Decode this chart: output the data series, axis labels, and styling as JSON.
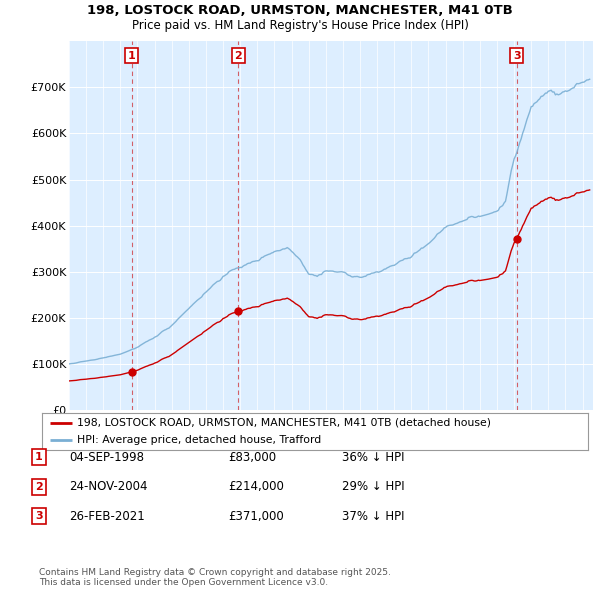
{
  "title1": "198, LOSTOCK ROAD, URMSTON, MANCHESTER, M41 0TB",
  "title2": "Price paid vs. HM Land Registry's House Price Index (HPI)",
  "legend_line1": "198, LOSTOCK ROAD, URMSTON, MANCHESTER, M41 0TB (detached house)",
  "legend_line2": "HPI: Average price, detached house, Trafford",
  "sale_color": "#cc0000",
  "hpi_color": "#7aafd4",
  "vline_color": "#cc0000",
  "purchases": [
    {
      "price": 83000,
      "label": "1",
      "year": 1998.67
    },
    {
      "price": 214000,
      "label": "2",
      "year": 2004.9
    },
    {
      "price": 371000,
      "label": "3",
      "year": 2021.15
    }
  ],
  "table_rows": [
    {
      "num": "1",
      "date": "04-SEP-1998",
      "price": "£83,000",
      "note": "36% ↓ HPI"
    },
    {
      "num": "2",
      "date": "24-NOV-2004",
      "price": "£214,000",
      "note": "29% ↓ HPI"
    },
    {
      "num": "3",
      "date": "26-FEB-2021",
      "price": "£371,000",
      "note": "37% ↓ HPI"
    }
  ],
  "footer": "Contains HM Land Registry data © Crown copyright and database right 2025.\nThis data is licensed under the Open Government Licence v3.0.",
  "ylim": [
    0,
    800000
  ],
  "yticks": [
    0,
    100000,
    200000,
    300000,
    400000,
    500000,
    600000,
    700000
  ],
  "ytick_labels": [
    "£0",
    "£100K",
    "£200K",
    "£300K",
    "£400K",
    "£500K",
    "£600K",
    "£700K"
  ],
  "background_color": "#ffffff",
  "plot_bg_color": "#ddeeff"
}
